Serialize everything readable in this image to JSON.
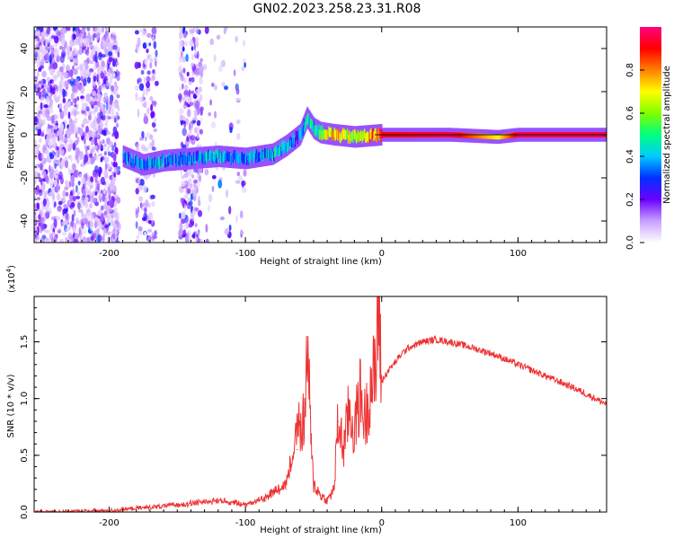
{
  "title": "GN02.2023.258.23.31.R08",
  "chart_data": [
    {
      "type": "heatmap",
      "title": "GN02.2023.258.23.31.R08",
      "xlabel": "Height of straight line (km)",
      "ylabel": "Frequency (Hz)",
      "xlim": [
        -255,
        165
      ],
      "ylim": [
        -50,
        50
      ],
      "xticks": [
        -200,
        -100,
        0,
        100
      ],
      "yticks": [
        -40,
        -20,
        0,
        20,
        40
      ],
      "colorbar": {
        "label": "Normalized spectral amplitude",
        "range": [
          0,
          1
        ],
        "ticks": [
          "0.0",
          "0.2",
          "0.4",
          "0.6",
          "0.8"
        ],
        "colormap": [
          "#ffffff",
          "#c8a0ff",
          "#6a00ff",
          "#0030ff",
          "#00ccff",
          "#00ff80",
          "#80ff00",
          "#ffff00",
          "#ff8000",
          "#ff0000",
          "#ff0080"
        ]
      },
      "ridge": {
        "x": [
          -190,
          -175,
          -160,
          -140,
          -120,
          -100,
          -80,
          -70,
          -60,
          -55,
          -50,
          -45,
          -35,
          -20,
          0,
          50,
          85,
          100,
          165
        ],
        "freq": [
          -10,
          -14,
          -12,
          -11,
          -10,
          -11,
          -9,
          -5,
          0,
          8,
          3,
          1,
          0,
          -1,
          0,
          0,
          -1,
          0,
          0
        ],
        "amplitude": [
          0.3,
          0.35,
          0.35,
          0.35,
          0.4,
          0.35,
          0.4,
          0.35,
          0.3,
          0.45,
          0.45,
          0.55,
          0.75,
          0.6,
          0.9,
          0.95,
          0.7,
          0.95,
          0.95
        ]
      }
    },
    {
      "type": "line",
      "xlabel": "Height of straight line (km)",
      "ylabel": "SNR (10 * v/v)",
      "exponent_label": "(x10",
      "exponent_power": "4",
      "exponent_close": ")",
      "xlim": [
        -255,
        165
      ],
      "ylim": [
        0,
        1.9
      ],
      "xticks": [
        -200,
        -100,
        0,
        100
      ],
      "yticks": [
        "0.0",
        "0.5",
        "1.0",
        "1.5"
      ],
      "color": "#ee3333",
      "x": [
        -255,
        -200,
        -160,
        -140,
        -120,
        -100,
        -85,
        -70,
        -62,
        -56,
        -54,
        -52,
        -50,
        -45,
        -40,
        -35,
        -32,
        -28,
        -24,
        -20,
        -16,
        -12,
        -8,
        -4,
        -3,
        0,
        5,
        10,
        15,
        20,
        30,
        40,
        50,
        60,
        80,
        100,
        110,
        120,
        140,
        165
      ],
      "y": [
        0.0,
        0.01,
        0.04,
        0.06,
        0.08,
        0.05,
        0.1,
        0.2,
        0.55,
        0.9,
        1.5,
        0.6,
        0.25,
        0.15,
        0.1,
        0.2,
        0.8,
        0.55,
        0.9,
        0.7,
        1.05,
        0.8,
        1.15,
        1.2,
        1.9,
        1.15,
        1.25,
        1.32,
        1.4,
        1.45,
        1.5,
        1.52,
        1.5,
        1.47,
        1.4,
        1.3,
        1.25,
        1.2,
        1.1,
        0.95
      ]
    }
  ]
}
